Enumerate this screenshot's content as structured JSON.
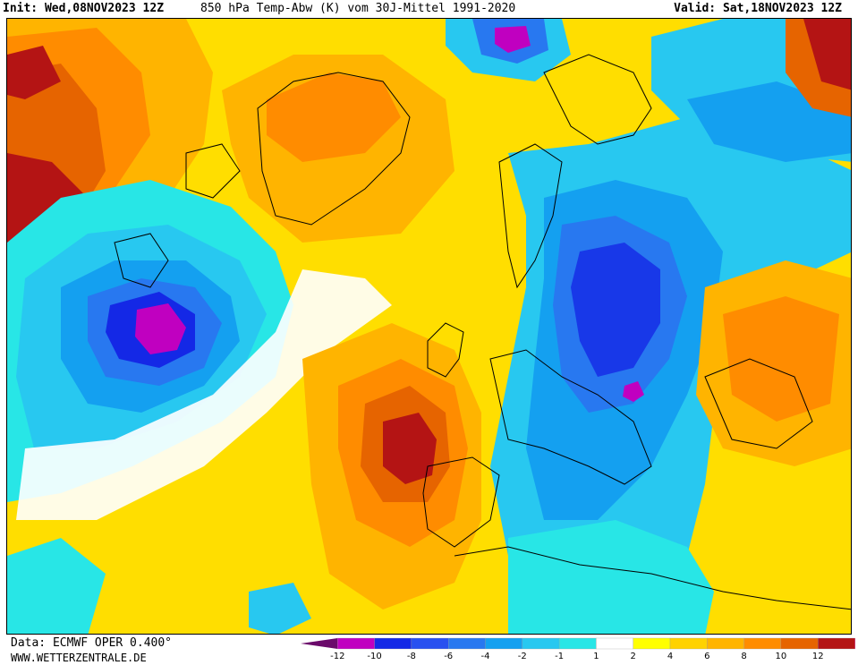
{
  "header": {
    "init_label": "Init:",
    "init_value": "Wed,08NOV2023 12Z",
    "parameter": "850 hPa Temp-Abw (K) vom 30J-Mittel 1991-2020",
    "valid_label": "Valid:",
    "valid_value": "Sat,18NOV2023 12Z"
  },
  "footer": {
    "data_source": "Data: ECMWF OPER 0.400°",
    "website": "WWW.WETTERZENTRALE.DE"
  },
  "legend": {
    "ticks": [
      "-12",
      "-10",
      "-8",
      "-6",
      "-4",
      "-2",
      "-1",
      "1",
      "2",
      "4",
      "6",
      "8",
      "10",
      "12"
    ],
    "colors": [
      "#6b0a6b",
      "#c000c0",
      "#1428e6",
      "#2850f0",
      "#2878f0",
      "#14a0f0",
      "#28c8f0",
      "#28e6e6",
      "#ffffff",
      "#ffff00",
      "#ffd200",
      "#ffb400",
      "#ff8c00",
      "#e66400",
      "#b41414",
      "#e6288c"
    ]
  },
  "map": {
    "colors": {
      "deep_cold": "#c000c0",
      "very_cold": "#1428e6",
      "cold": "#2878f0",
      "cool": "#14a0f0",
      "slightly_cool": "#28c8f0",
      "near_normal": "#ffffff",
      "slightly_warm": "#ffff00",
      "warm": "#ffd200",
      "warmer": "#ffb400",
      "hot": "#ff8c00",
      "very_hot": "#e66400",
      "extreme": "#b41414"
    }
  }
}
